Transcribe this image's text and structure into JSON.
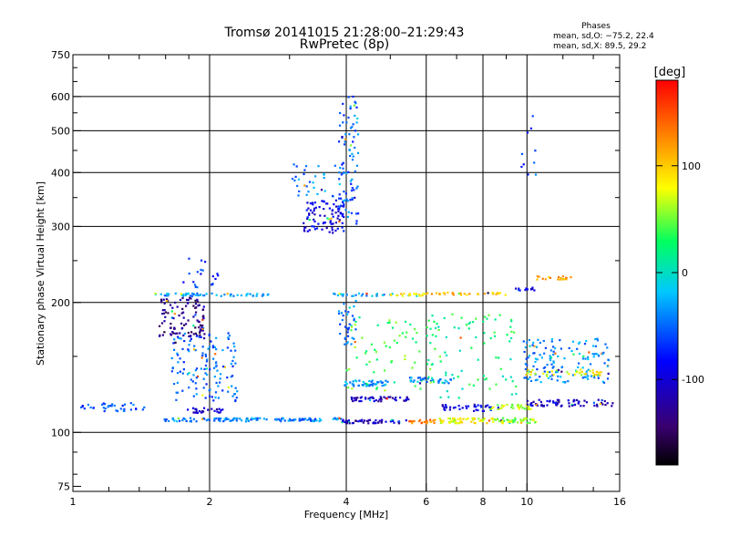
{
  "chart_data": {
    "type": "scatter",
    "title": "Tromsø 20141015 21:28:00–21:29:43",
    "subtitle": "RwPretec (8p)",
    "xlabel": "Frequency [MHz]",
    "ylabel": "Stationary phase Virtual Height [km]",
    "x_scale": "log",
    "y_scale": "log",
    "xlim": [
      1,
      16
    ],
    "ylim": [
      73,
      750
    ],
    "x_ticks": [
      1,
      2,
      4,
      6,
      8,
      10,
      16
    ],
    "x_tick_labels": [
      "1",
      "2",
      "4",
      "6",
      "8",
      "10",
      "16"
    ],
    "y_ticks": [
      75,
      100,
      200,
      300,
      400,
      500,
      600,
      750
    ],
    "y_tick_labels": [
      "75",
      "100",
      "200",
      "300",
      "400",
      "500",
      "600",
      "750"
    ],
    "grid": true,
    "colorbar": {
      "label": "[deg]",
      "range": [
        -180,
        180
      ],
      "ticks": [
        100,
        0,
        -100
      ],
      "tick_labels": [
        "100",
        "0",
        "-100"
      ],
      "colors": [
        "#000000",
        "#3a0070",
        "#0000ff",
        "#00c8ff",
        "#00ff60",
        "#ffff00",
        "#ff8000",
        "#ff0000"
      ]
    },
    "stats": {
      "title": "Phases",
      "line_o": "mean, sd,O: −75.2, 22.4",
      "line_x": "mean, sd,X:  89.5, 29.2"
    },
    "series": [
      {
        "x_range": [
          1.0,
          1.45
        ],
        "y_range": [
          112,
          117
        ],
        "phase": -60,
        "n": 35
      },
      {
        "x_range": [
          1.58,
          3.9
        ],
        "y_range": [
          106,
          108
        ],
        "phase": -40,
        "n": 130
      },
      {
        "x_range": [
          3.9,
          5.5
        ],
        "y_range": [
          105,
          107
        ],
        "phase": -110,
        "n": 55
      },
      {
        "x_range": [
          5.5,
          6.3
        ],
        "y_range": [
          105,
          107
        ],
        "phase": 130,
        "n": 25
      },
      {
        "x_range": [
          6.3,
          8.5
        ],
        "y_range": [
          105,
          108
        ],
        "phase": 80,
        "n": 55
      },
      {
        "x_range": [
          8.5,
          10.5
        ],
        "y_range": [
          105,
          108
        ],
        "phase": 60,
        "n": 45
      },
      {
        "x_range": [
          1.5,
          2.7
        ],
        "y_range": [
          207,
          210
        ],
        "phase": -30,
        "n": 55
      },
      {
        "x_range": [
          3.7,
          5.1
        ],
        "y_range": [
          207,
          210
        ],
        "phase": -30,
        "n": 30
      },
      {
        "x_range": [
          5.0,
          6.0
        ],
        "y_range": [
          207,
          210
        ],
        "phase": 90,
        "n": 22
      },
      {
        "x_range": [
          6.0,
          9.0
        ],
        "y_range": [
          208,
          211
        ],
        "phase": 110,
        "n": 35
      },
      {
        "x_range": [
          9.3,
          10.5
        ],
        "y_range": [
          213,
          217
        ],
        "phase": -80,
        "n": 12
      },
      {
        "x_range": [
          10.5,
          12.5
        ],
        "y_range": [
          226,
          230
        ],
        "phase": 110,
        "n": 20
      },
      {
        "x_range": [
          1.55,
          1.95
        ],
        "y_range": [
          165,
          205
        ],
        "phase": -135,
        "n": 110
      },
      {
        "x_range": [
          1.65,
          2.3
        ],
        "y_range": [
          118,
          170
        ],
        "phase": -50,
        "n": 140
      },
      {
        "x_range": [
          1.75,
          2.1
        ],
        "y_range": [
          215,
          255
        ],
        "phase": -70,
        "n": 20
      },
      {
        "x_range": [
          1.78,
          2.15
        ],
        "y_range": [
          111,
          114
        ],
        "phase": -110,
        "n": 25
      },
      {
        "x_range": [
          3.2,
          3.95
        ],
        "y_range": [
          290,
          345
        ],
        "phase": -95,
        "n": 90
      },
      {
        "x_range": [
          3.0,
          3.8
        ],
        "y_range": [
          350,
          420
        ],
        "phase": -40,
        "n": 30
      },
      {
        "x_range": [
          3.85,
          4.25
        ],
        "y_range": [
          300,
          600
        ],
        "phase": -50,
        "n": 90
      },
      {
        "x_range": [
          3.85,
          4.2
        ],
        "y_range": [
          160,
          205
        ],
        "phase": -45,
        "n": 35
      },
      {
        "x_range": [
          3.95,
          5.0
        ],
        "y_range": [
          128,
          132
        ],
        "phase": -30,
        "n": 45
      },
      {
        "x_range": [
          4.1,
          5.5
        ],
        "y_range": [
          118,
          121
        ],
        "phase": -110,
        "n": 45
      },
      {
        "x_range": [
          4.0,
          6.5
        ],
        "y_range": [
          125,
          185
        ],
        "phase": 40,
        "n": 70
      },
      {
        "x_range": [
          5.5,
          6.8
        ],
        "y_range": [
          130,
          134
        ],
        "phase": -40,
        "n": 35
      },
      {
        "x_range": [
          6.5,
          8.5
        ],
        "y_range": [
          112,
          116
        ],
        "phase": -90,
        "n": 35
      },
      {
        "x_range": [
          8.3,
          10.2
        ],
        "y_range": [
          113,
          116
        ],
        "phase": 65,
        "n": 35
      },
      {
        "x_range": [
          10.0,
          15.5
        ],
        "y_range": [
          115,
          119
        ],
        "phase": -110,
        "n": 70
      },
      {
        "x_range": [
          6.0,
          9.5
        ],
        "y_range": [
          120,
          190
        ],
        "phase": 20,
        "n": 80
      },
      {
        "x_range": [
          9.8,
          15.2
        ],
        "y_range": [
          130,
          165
        ],
        "phase": -40,
        "n": 140
      },
      {
        "x_range": [
          9.8,
          15.0
        ],
        "y_range": [
          135,
          140
        ],
        "phase": 80,
        "n": 45
      },
      {
        "x_range": [
          9.6,
          10.5
        ],
        "y_range": [
          390,
          560
        ],
        "phase": -60,
        "n": 10
      }
    ]
  }
}
